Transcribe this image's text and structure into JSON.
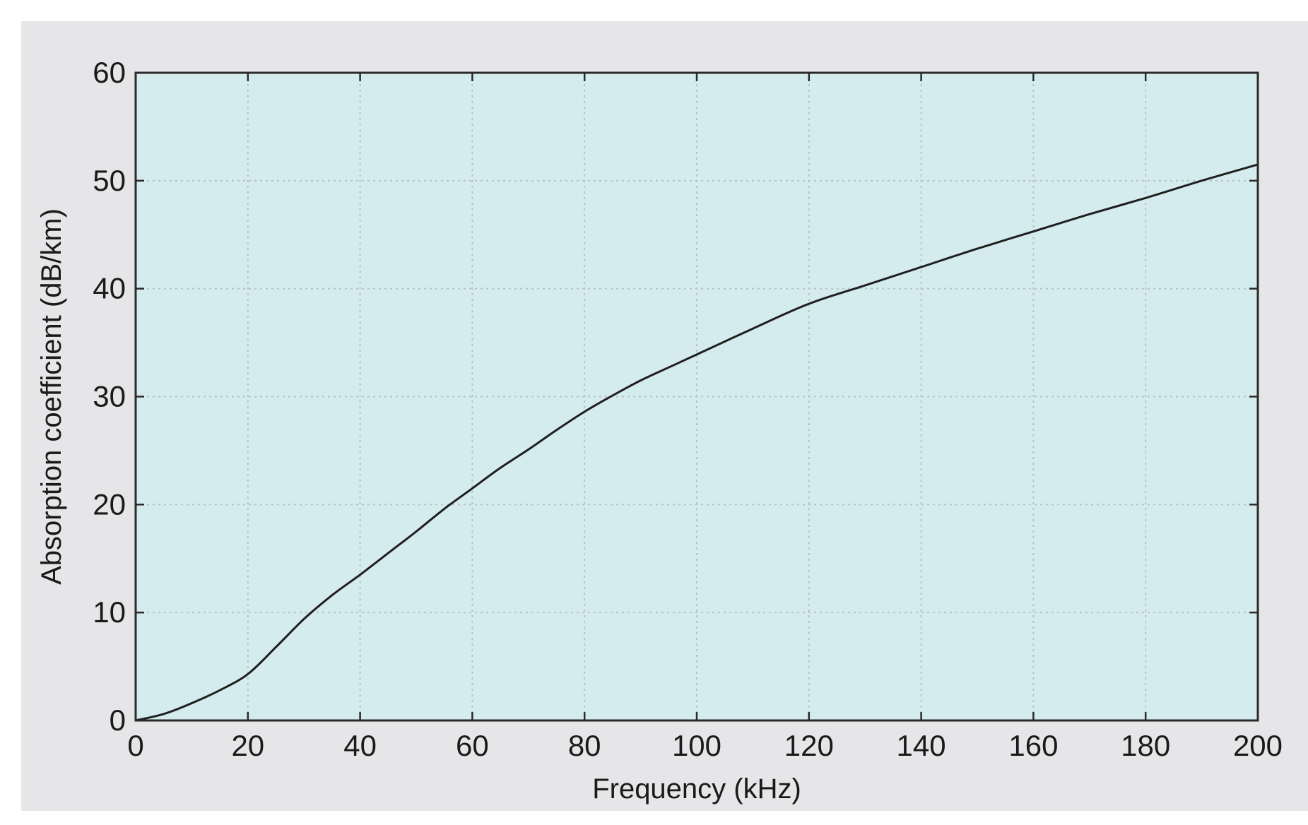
{
  "colors": {
    "panel_background": "#e6e6e8",
    "plot_background": "#d5ecee",
    "frame": "#2a2a2a",
    "grid": "#b8c2c6",
    "line": "#1f1f1f"
  },
  "chart_data": {
    "type": "line",
    "title": "",
    "xlabel": "Frequency (kHz)",
    "ylabel": "Absorption coefficient (dB/km)",
    "xlim": [
      0,
      200
    ],
    "ylim": [
      0,
      60
    ],
    "xticks": [
      0,
      20,
      40,
      60,
      80,
      100,
      120,
      140,
      160,
      180,
      200
    ],
    "yticks": [
      0,
      10,
      20,
      30,
      40,
      50,
      60
    ],
    "grid": true,
    "legend": "none",
    "series": [
      {
        "x": [
          0,
          5,
          10,
          15,
          20,
          25,
          30,
          35,
          40,
          45,
          50,
          55,
          60,
          65,
          70,
          75,
          80,
          85,
          90,
          95,
          100,
          110,
          120,
          130,
          140,
          150,
          160,
          170,
          180,
          190,
          200
        ],
        "values": [
          0,
          0.6,
          1.6,
          2.8,
          4.3,
          6.8,
          9.4,
          11.6,
          13.5,
          15.5,
          17.5,
          19.6,
          21.5,
          23.4,
          25.1,
          26.9,
          28.6,
          30.1,
          31.5,
          32.7,
          33.9,
          36.3,
          38.6,
          40.3,
          42.0,
          43.7,
          45.3,
          46.9,
          48.4,
          50.0,
          51.5
        ]
      }
    ]
  }
}
